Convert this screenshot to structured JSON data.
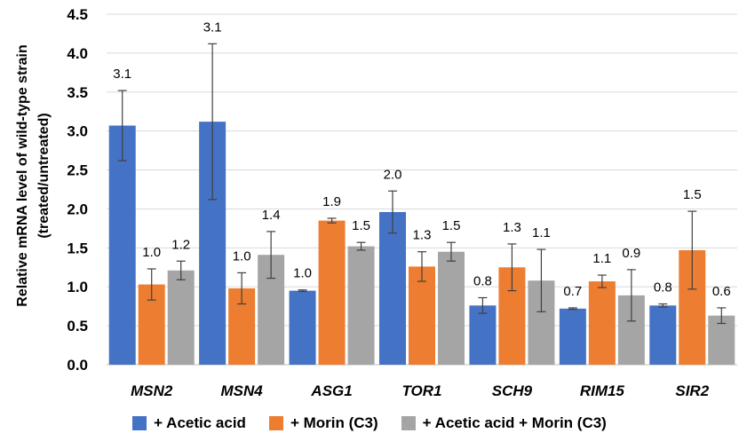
{
  "chart_data": {
    "type": "bar",
    "title": "",
    "ylabel": [
      "Relative mRNA level of wild-type strain",
      "(treated/untreated)"
    ],
    "xlabel": "",
    "ylim": [
      0,
      4.5
    ],
    "yticks": [
      "0.0",
      "0.5",
      "1.0",
      "1.5",
      "2.0",
      "2.5",
      "3.0",
      "3.5",
      "4.0",
      "4.5"
    ],
    "grid": true,
    "legend_position": "bottom",
    "categories": [
      "MSN2",
      "MSN4",
      "ASG1",
      "TOR1",
      "SCH9",
      "RIM15",
      "SIR2"
    ],
    "series": [
      {
        "name": "+ Acetic acid",
        "color": "#4472C4",
        "values": [
          3.07,
          3.12,
          0.95,
          1.96,
          0.76,
          0.72,
          0.76
        ],
        "errors": [
          0.45,
          1.0,
          0.01,
          0.27,
          0.1,
          0.01,
          0.02
        ],
        "labels": [
          "3.1",
          "3.1",
          "1.0",
          "2.0",
          "0.8",
          "0.7",
          "0.8"
        ]
      },
      {
        "name": "+ Morin (C3)",
        "color": "#ED7D31",
        "values": [
          1.03,
          0.98,
          1.85,
          1.26,
          1.25,
          1.07,
          1.47
        ],
        "errors": [
          0.2,
          0.2,
          0.03,
          0.19,
          0.3,
          0.08,
          0.5
        ],
        "labels": [
          "1.0",
          "1.0",
          "1.9",
          "1.3",
          "1.3",
          "1.1",
          "1.5"
        ]
      },
      {
        "name": "+ Acetic acid + Morin (C3)",
        "color": "#A5A5A5",
        "values": [
          1.21,
          1.41,
          1.52,
          1.45,
          1.08,
          0.89,
          0.63
        ],
        "errors": [
          0.12,
          0.3,
          0.05,
          0.12,
          0.4,
          0.33,
          0.1
        ],
        "labels": [
          "1.2",
          "1.4",
          "1.5",
          "1.5",
          "1.1",
          "0.9",
          "0.6"
        ]
      }
    ]
  }
}
